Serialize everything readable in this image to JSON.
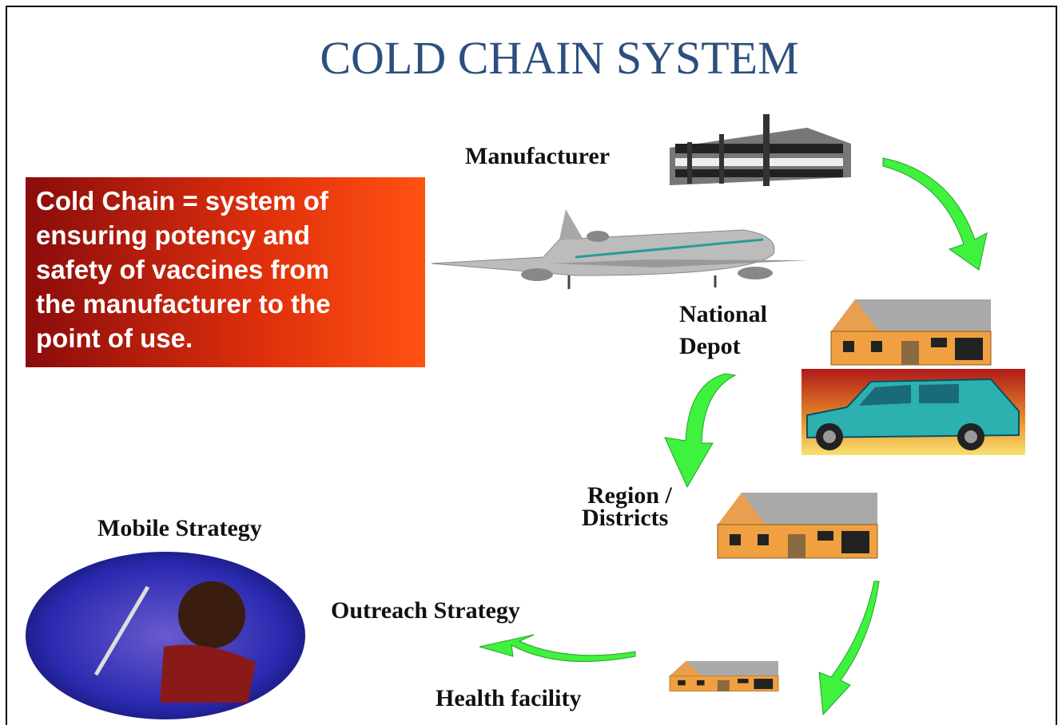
{
  "header": {
    "title": "COLD CHAIN SYSTEM"
  },
  "definition": {
    "lines": [
      "Cold Chain = system of",
      "ensuring potency and",
      "safety of vaccines from",
      "the manufacturer to the",
      "point of use."
    ]
  },
  "nodes": [
    {
      "label": [
        "Manufacturer"
      ]
    },
    {
      "label": [
        "National",
        "Depot"
      ]
    },
    {
      "label": [
        "Region /",
        "Districts"
      ]
    },
    {
      "label": [
        "Health facility"
      ]
    },
    {
      "label": [
        "Outreach Strategy"
      ]
    },
    {
      "label": [
        "Mobile Strategy"
      ]
    }
  ]
}
